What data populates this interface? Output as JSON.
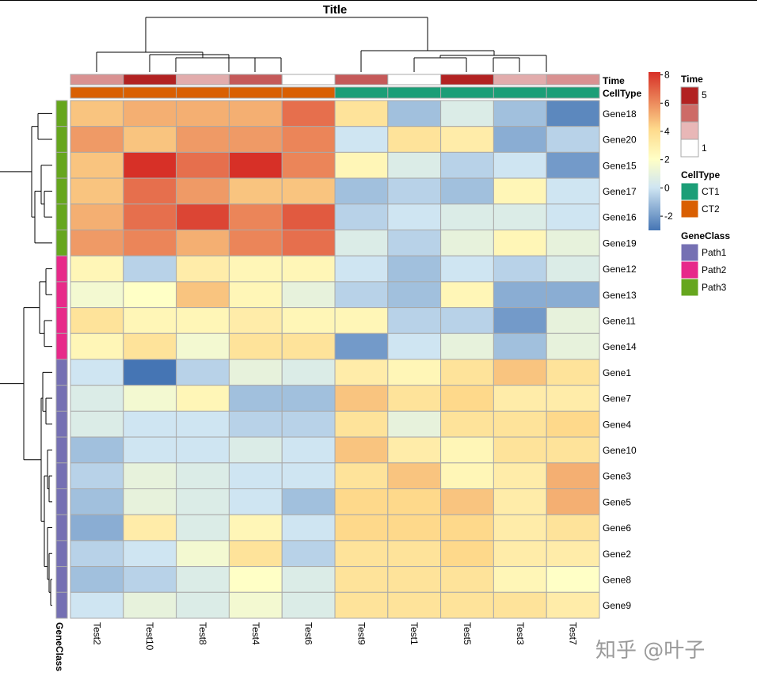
{
  "chart_data": {
    "type": "heatmap",
    "title": "Title",
    "columns": [
      "Test2",
      "Test10",
      "Test8",
      "Test4",
      "Test6",
      "Test9",
      "Test1",
      "Test5",
      "Test3",
      "Test7"
    ],
    "rows": [
      "Gene18",
      "Gene20",
      "Gene15",
      "Gene17",
      "Gene16",
      "Gene19",
      "Gene12",
      "Gene13",
      "Gene11",
      "Gene14",
      "Gene1",
      "Gene7",
      "Gene4",
      "Gene10",
      "Gene3",
      "Gene5",
      "Gene6",
      "Gene2",
      "Gene8",
      "Gene9"
    ],
    "values": [
      [
        4.5,
        5.0,
        5.0,
        5.0,
        6.5,
        3.5,
        -1.0,
        0.5,
        -1.0,
        -2.5
      ],
      [
        5.5,
        4.5,
        5.5,
        5.5,
        6.0,
        0.0,
        3.5,
        3.0,
        -1.5,
        -0.5
      ],
      [
        4.5,
        8.0,
        6.5,
        8.0,
        6.0,
        2.5,
        0.5,
        -0.5,
        0.0,
        -2.0
      ],
      [
        4.5,
        6.5,
        5.5,
        4.5,
        4.5,
        -1.0,
        -0.5,
        -1.0,
        2.5,
        0.0
      ],
      [
        5.0,
        6.5,
        7.5,
        6.0,
        7.0,
        -0.5,
        0.0,
        0.5,
        0.5,
        0.0
      ],
      [
        5.5,
        6.0,
        5.0,
        6.0,
        6.5,
        0.5,
        -0.5,
        1.0,
        2.5,
        1.0
      ],
      [
        2.5,
        -0.5,
        3.0,
        2.5,
        2.5,
        0.0,
        -1.0,
        0.0,
        -0.5,
        0.5
      ],
      [
        1.5,
        2.0,
        4.5,
        2.5,
        1.0,
        -0.5,
        -1.0,
        2.5,
        -1.5,
        -1.5
      ],
      [
        3.5,
        2.5,
        2.5,
        3.0,
        2.5,
        2.5,
        -0.5,
        -0.5,
        -2.0,
        1.0
      ],
      [
        2.5,
        3.5,
        1.5,
        3.5,
        3.5,
        -2.0,
        0.0,
        1.0,
        -1.0,
        1.0
      ],
      [
        0.0,
        -3.0,
        -0.5,
        1.0,
        0.5,
        3.0,
        2.5,
        3.5,
        4.5,
        3.5
      ],
      [
        0.5,
        1.5,
        2.5,
        -1.0,
        -1.0,
        4.5,
        3.5,
        4.0,
        3.0,
        3.0
      ],
      [
        0.5,
        0.0,
        0.0,
        -0.5,
        -0.5,
        3.5,
        1.0,
        3.5,
        3.5,
        4.0
      ],
      [
        -1.0,
        0.0,
        0.0,
        0.5,
        0.0,
        4.5,
        3.0,
        2.5,
        3.5,
        3.5
      ],
      [
        -0.5,
        1.0,
        0.5,
        0.0,
        0.0,
        3.5,
        4.5,
        2.5,
        3.0,
        5.0
      ],
      [
        -1.0,
        1.0,
        0.5,
        0.0,
        -1.0,
        4.0,
        4.0,
        4.5,
        3.0,
        5.0
      ],
      [
        -1.5,
        3.0,
        0.5,
        2.5,
        0.0,
        4.0,
        4.0,
        4.0,
        3.0,
        3.5
      ],
      [
        -0.5,
        0.0,
        1.5,
        3.5,
        -0.5,
        3.5,
        3.5,
        4.0,
        3.0,
        3.0
      ],
      [
        -1.0,
        -0.5,
        0.5,
        2.0,
        0.5,
        3.5,
        3.5,
        3.5,
        2.5,
        2.0
      ],
      [
        0.0,
        1.0,
        0.5,
        1.5,
        0.5,
        3.5,
        3.5,
        3.5,
        3.5,
        3.0
      ]
    ],
    "color_scale": {
      "stops": [
        -3,
        0,
        2,
        4,
        8
      ],
      "colors": [
        "#4575b4",
        "#cfe5f2",
        "#ffffc6",
        "#fed98b",
        "#d73027"
      ],
      "ticks": [
        8,
        6,
        4,
        2,
        0,
        -2
      ]
    },
    "col_annotations": {
      "Time": [
        3,
        5,
        2.5,
        4,
        1,
        4,
        1,
        5,
        2.5,
        3
      ],
      "CellType": [
        "CT2",
        "CT2",
        "CT2",
        "CT2",
        "CT2",
        "CT1",
        "CT1",
        "CT1",
        "CT1",
        "CT1"
      ]
    },
    "row_annotations": {
      "GeneClass": [
        "Path3",
        "Path3",
        "Path3",
        "Path3",
        "Path3",
        "Path3",
        "Path2",
        "Path2",
        "Path2",
        "Path2",
        "Path1",
        "Path1",
        "Path1",
        "Path1",
        "Path1",
        "Path1",
        "Path1",
        "Path1",
        "Path1",
        "Path1"
      ]
    },
    "annotation_labels": {
      "time": "Time",
      "celltype": "CellType",
      "geneclass": "GeneClass"
    },
    "legends": {
      "time": {
        "title": "Time",
        "tick_high": "5",
        "tick_low": "1",
        "colors": [
          "#b22222",
          "#cd6b67",
          "#e8b7b7",
          "#ffffff"
        ]
      },
      "celltype": {
        "title": "CellType",
        "items": [
          {
            "label": "CT1",
            "color": "#1b9e77"
          },
          {
            "label": "CT2",
            "color": "#d95f02"
          }
        ]
      },
      "geneclass": {
        "title": "GeneClass",
        "items": [
          {
            "label": "Path1",
            "color": "#7570b3"
          },
          {
            "label": "Path2",
            "color": "#e7298a"
          },
          {
            "label": "Path3",
            "color": "#66a61e"
          }
        ]
      }
    }
  },
  "watermark": "知乎 @叶子"
}
